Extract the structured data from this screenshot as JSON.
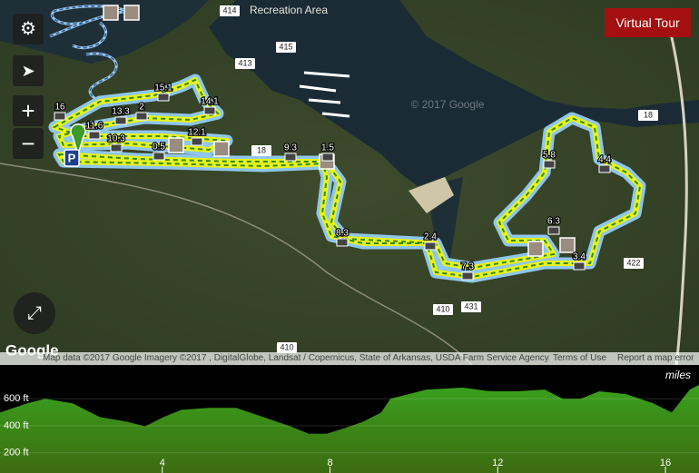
{
  "map": {
    "place_label": "Recreation Area",
    "road_labels": [
      "414",
      "415",
      "413",
      "18",
      "18",
      "410",
      "431",
      "422",
      "410"
    ],
    "watermark": "© 2017 Google",
    "trail_markers": [
      "15.1",
      "14.1",
      "16",
      "13.3",
      "2",
      "12.1",
      "11.6",
      "10.3",
      "0.5",
      "9.3",
      "1.5",
      "8.3",
      "2.4",
      "7.3",
      "5.8",
      "4.4",
      "6.3",
      "3.4"
    ],
    "parking": "P",
    "logo": "Google",
    "attribution": "Map data ©2017 Google Imagery ©2017 , DigitalGlobe, Landsat / Copernicus, State of Arkansas, USDA Farm Service Agency",
    "terms": "Terms of Use",
    "report": "Report a map error"
  },
  "controls": {
    "virtual_tour": "Virtual Tour",
    "zoom_in": "+",
    "zoom_out": "−"
  },
  "elevation_profile": {
    "x_unit": "miles",
    "x": [
      0.13,
      0.78,
      1.21,
      1.86,
      2.51,
      3.16,
      3.59,
      4.03,
      4.46,
      5.11,
      5.76,
      6.41,
      7.06,
      7.49,
      7.92,
      8.35,
      8.79,
      9.22,
      9.44,
      10.3,
      11.17,
      11.82,
      12.47,
      13.12,
      13.55,
      13.98,
      14.42,
      15.06,
      15.71,
      16.15,
      16.58,
      16.8
    ],
    "y": [
      498,
      566,
      600,
      566,
      464,
      430,
      395,
      464,
      518,
      532,
      532,
      464,
      395,
      341,
      341,
      382,
      430,
      498,
      600,
      668,
      682,
      655,
      655,
      668,
      600,
      600,
      655,
      634,
      566,
      498,
      668,
      702
    ],
    "xlim": [
      0.13,
      16.8
    ],
    "ylim": [
      50,
      850
    ],
    "xticks": [
      4,
      8,
      12,
      16
    ],
    "yticks": [
      {
        "value": 600,
        "label": "600 ft"
      },
      {
        "value": 400,
        "label": "400 ft"
      },
      {
        "value": 200,
        "label": "200 ft"
      }
    ]
  }
}
